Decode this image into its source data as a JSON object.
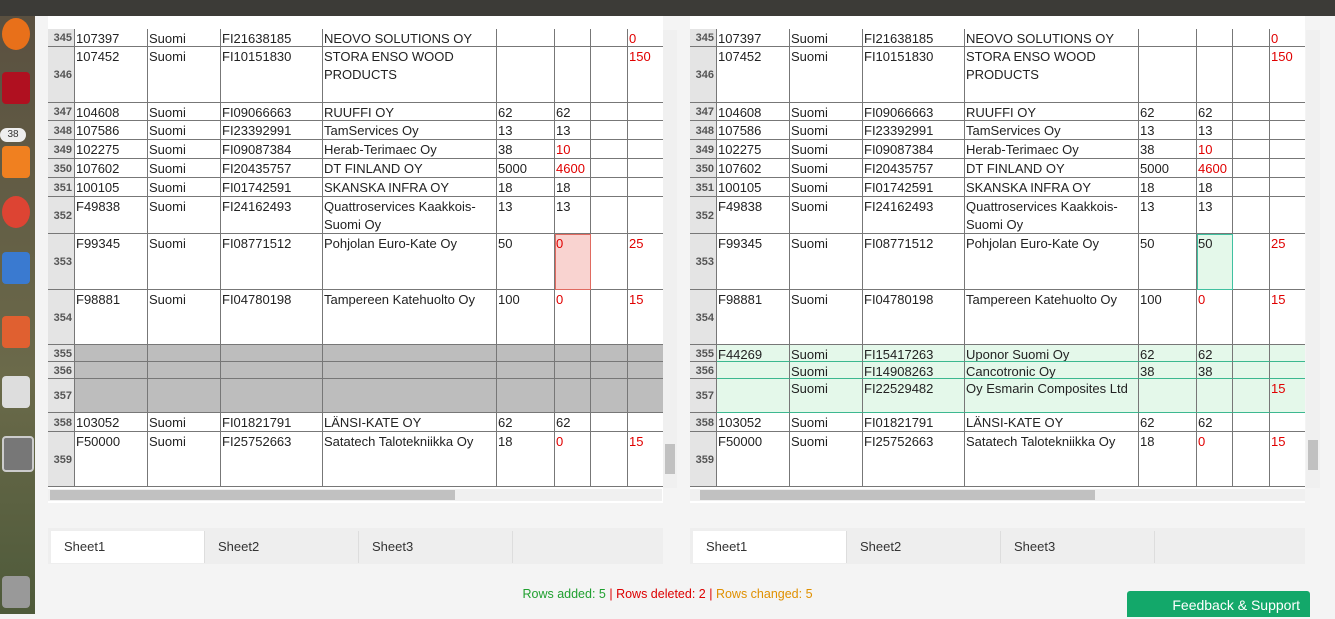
{
  "launcher": {
    "badge": "38"
  },
  "left": {
    "rows": [
      [
        345,
        "107397",
        "Suomi",
        "FI21638185",
        "NEOVO SOLUTIONS OY",
        null,
        null,
        null,
        0
      ],
      [
        346,
        "107452",
        "Suomi",
        "FI10151830",
        "STORA ENSO WOOD PRODUCTS",
        null,
        null,
        null,
        150
      ],
      [
        347,
        "104608",
        "Suomi",
        "FI09066663",
        "RUUFFI OY",
        62,
        62,
        null,
        null
      ],
      [
        348,
        "107586",
        "Suomi",
        "FI23392991",
        "TamServices Oy",
        13,
        13,
        null,
        null
      ],
      [
        349,
        "102275",
        "Suomi",
        "FI09087384",
        "Herab-Terimaec Oy",
        38,
        10,
        null,
        null
      ],
      [
        350,
        "107602",
        "Suomi",
        "FI20435757",
        "DT FINLAND OY",
        5000,
        4600,
        null,
        null
      ],
      [
        351,
        "100105",
        "Suomi",
        "FI01742591",
        "SKANSKA INFRA OY",
        18,
        18,
        null,
        null
      ],
      [
        352,
        "F49838",
        "Suomi",
        "FI24162493",
        "Quattroservices Kaakkois-Suomi Oy",
        13,
        13,
        null,
        null
      ],
      [
        353,
        "F99345",
        "Suomi",
        "FI08771512",
        "Pohjolan Euro-Kate Oy",
        50,
        0,
        null,
        25
      ],
      [
        354,
        "F98881",
        "Suomi",
        "FI04780198",
        "Tampereen Katehuolto Oy",
        100,
        0,
        null,
        15
      ],
      [
        355,
        null,
        null,
        null,
        null,
        null,
        null,
        null,
        null
      ],
      [
        356,
        null,
        null,
        null,
        null,
        null,
        null,
        null,
        null
      ],
      [
        357,
        null,
        null,
        null,
        null,
        null,
        null,
        null,
        null
      ],
      [
        358,
        "103052",
        "Suomi",
        "FI01821791",
        "LÄNSI-KATE OY",
        62,
        62,
        null,
        null
      ],
      [
        359,
        "F50000",
        "Suomi",
        "FI25752663",
        "Satatech Talotekniikka Oy",
        18,
        0,
        null,
        15
      ]
    ],
    "tabs": [
      "Sheet1",
      "Sheet2",
      "Sheet3"
    ]
  },
  "right": {
    "rows": [
      [
        345,
        "107397",
        "Suomi",
        "FI21638185",
        "NEOVO SOLUTIONS OY",
        null,
        null,
        null,
        0
      ],
      [
        346,
        "107452",
        "Suomi",
        "FI10151830",
        "STORA ENSO WOOD PRODUCTS",
        null,
        null,
        null,
        150
      ],
      [
        347,
        "104608",
        "Suomi",
        "FI09066663",
        "RUUFFI OY",
        62,
        62,
        null,
        null
      ],
      [
        348,
        "107586",
        "Suomi",
        "FI23392991",
        "TamServices Oy",
        13,
        13,
        null,
        null
      ],
      [
        349,
        "102275",
        "Suomi",
        "FI09087384",
        "Herab-Terimaec Oy",
        38,
        10,
        null,
        null
      ],
      [
        350,
        "107602",
        "Suomi",
        "FI20435757",
        "DT FINLAND OY",
        5000,
        4600,
        null,
        null
      ],
      [
        351,
        "100105",
        "Suomi",
        "FI01742591",
        "SKANSKA INFRA OY",
        18,
        18,
        null,
        null
      ],
      [
        352,
        "F49838",
        "Suomi",
        "FI24162493",
        "Quattroservices Kaakkois-Suomi Oy",
        13,
        13,
        null,
        null
      ],
      [
        353,
        "F99345",
        "Suomi",
        "FI08771512",
        "Pohjolan Euro-Kate Oy",
        50,
        50,
        null,
        25
      ],
      [
        354,
        "F98881",
        "Suomi",
        "FI04780198",
        "Tampereen Katehuolto Oy",
        100,
        0,
        null,
        15
      ],
      [
        355,
        "F44269",
        "Suomi",
        "FI15417263",
        "Uponor Suomi Oy",
        62,
        62,
        null,
        null
      ],
      [
        356,
        null,
        "Suomi",
        "FI14908263",
        "Cancotronic Oy",
        38,
        38,
        null,
        null
      ],
      [
        357,
        null,
        "Suomi",
        "FI22529482",
        "Oy Esmarin Composites Ltd",
        null,
        null,
        null,
        15
      ],
      [
        358,
        "103052",
        "Suomi",
        "FI01821791",
        "LÄNSI-KATE OY",
        62,
        62,
        null,
        null
      ],
      [
        359,
        "F50000",
        "Suomi",
        "FI25752663",
        "Satatech Talotekniikka Oy",
        18,
        0,
        null,
        15
      ]
    ],
    "tabs": [
      "Sheet1",
      "Sheet2",
      "Sheet3"
    ]
  },
  "footer": {
    "added": "Rows added: 5",
    "deleted": "Rows deleted: 2",
    "changed": "Rows changed: 5",
    "separator": "|"
  },
  "feedback": "Feedback & Support"
}
